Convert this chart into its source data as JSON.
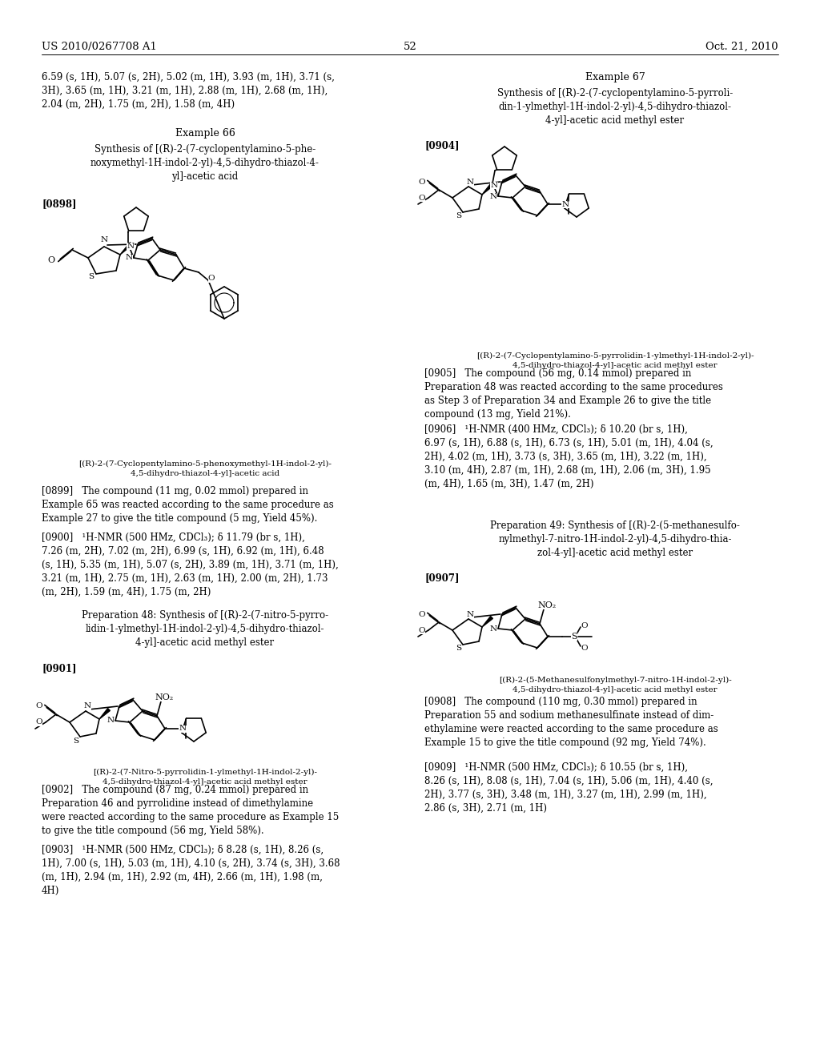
{
  "background_color": "#ffffff",
  "header_left": "US 2010/0267708 A1",
  "header_right": "Oct. 21, 2010",
  "page_number": "52",
  "top_text_left": "6.59 (s, 1H), 5.07 (s, 2H), 5.02 (m, 1H), 3.93 (m, 1H), 3.71 (s,\n3H), 3.65 (m, 1H), 3.21 (m, 1H), 2.88 (m, 1H), 2.68 (m, 1H),\n2.04 (m, 2H), 1.75 (m, 2H), 1.58 (m, 4H)",
  "ex66_title": "Example 66",
  "ex66_subtitle": "Synthesis of [(R)-2-(7-cyclopentylamino-5-phe-\nnoxymethyl-1H-indol-2-yl)-4,5-dihydro-thiazol-4-\nyl]-acetic acid",
  "ex66_tag": "[0898]",
  "ex66_caption": "[(R)-2-(7-Cyclopentylamino-5-phenoxymethyl-1H-indol-2-yl)-\n4,5-dihydro-thiazol-4-yl]-acetic acid",
  "para0899": "[0899]   The compound (11 mg, 0.02 mmol) prepared in\nExample 65 was reacted according to the same procedure as\nExample 27 to give the title compound (5 mg, Yield 45%).",
  "para0900": "[0900]   ¹H-NMR (500 HMz, CDCl₃); δ 11.79 (br s, 1H),\n7.26 (m, 2H), 7.02 (m, 2H), 6.99 (s, 1H), 6.92 (m, 1H), 6.48\n(s, 1H), 5.35 (m, 1H), 5.07 (s, 2H), 3.89 (m, 1H), 3.71 (m, 1H),\n3.21 (m, 1H), 2.75 (m, 1H), 2.63 (m, 1H), 2.00 (m, 2H), 1.73\n(m, 2H), 1.59 (m, 4H), 1.75 (m, 2H)",
  "prep48_title": "Preparation 48: Synthesis of [(R)-2-(7-nitro-5-pyrro-\nlidin-1-ylmethyl-1H-indol-2-yl)-4,5-dihydro-thiazol-\n4-yl]-acetic acid methyl ester",
  "prep48_tag": "[0901]",
  "prep48_caption": "[(R)-2-(7-Nitro-5-pyrrolidin-1-ylmethyl-1H-indol-2-yl)-\n4,5-dihydro-thiazol-4-yl]-acetic acid methyl ester",
  "para0902": "[0902]   The compound (87 mg, 0.24 mmol) prepared in\nPreparation 46 and pyrrolidine instead of dimethylamine\nwere reacted according to the same procedure as Example 15\nto give the title compound (56 mg, Yield 58%).",
  "para0903": "[0903]   ¹H-NMR (500 HMz, CDCl₃); δ 8.28 (s, 1H), 8.26 (s,\n1H), 7.00 (s, 1H), 5.03 (m, 1H), 4.10 (s, 2H), 3.74 (s, 3H), 3.68\n(m, 1H), 2.94 (m, 1H), 2.92 (m, 4H), 2.66 (m, 1H), 1.98 (m,\n4H)",
  "ex67_title": "Example 67",
  "ex67_subtitle": "Synthesis of [(R)-2-(7-cyclopentylamino-5-pyrroli-\ndin-1-ylmethyl-1H-indol-2-yl)-4,5-dihydro-thiazol-\n4-yl]-acetic acid methyl ester",
  "ex67_tag": "[0904]",
  "ex67_caption": "[(R)-2-(7-Cyclopentylamino-5-pyrrolidin-1-ylmethyl-1H-indol-2-yl)-\n4,5-dihydro-thiazol-4-yl]-acetic acid methyl ester",
  "para0905": "[0905]   The compound (56 mg, 0.14 mmol) prepared in\nPreparation 48 was reacted according to the same procedures\nas Step 3 of Preparation 34 and Example 26 to give the title\ncompound (13 mg, Yield 21%).",
  "para0906": "[0906]   ¹H-NMR (400 HMz, CDCl₃); δ 10.20 (br s, 1H),\n6.97 (s, 1H), 6.88 (s, 1H), 6.73 (s, 1H), 5.01 (m, 1H), 4.04 (s,\n2H), 4.02 (m, 1H), 3.73 (s, 3H), 3.65 (m, 1H), 3.22 (m, 1H),\n3.10 (m, 4H), 2.87 (m, 1H), 2.68 (m, 1H), 2.06 (m, 3H), 1.95\n(m, 4H), 1.65 (m, 3H), 1.47 (m, 2H)",
  "prep49_title": "Preparation 49: Synthesis of [(R)-2-(5-methanesulfo-\nnylmethyl-7-nitro-1H-indol-2-yl)-4,5-dihydro-thia-\nzol-4-yl]-acetic acid methyl ester",
  "prep49_tag": "[0907]",
  "prep49_caption": "[(R)-2-(5-Methanesulfonylmethyl-7-nitro-1H-indol-2-yl)-\n4,5-dihydro-thiazol-4-yl]-acetic acid methyl ester",
  "para0908": "[0908]   The compound (110 mg, 0.30 mmol) prepared in\nPreparation 55 and sodium methanesulfinate instead of dim-\nethylamine were reacted according to the same procedure as\nExample 15 to give the title compound (92 mg, Yield 74%).",
  "para0909": "[0909]   ¹H-NMR (500 HMz, CDCl₃); δ 10.55 (br s, 1H),\n8.26 (s, 1H), 8.08 (s, 1H), 7.04 (s, 1H), 5.06 (m, 1H), 4.40 (s,\n2H), 3.77 (s, 3H), 3.48 (m, 1H), 3.27 (m, 1H), 2.99 (m, 1H),\n2.86 (s, 3H), 2.71 (m, 1H)"
}
